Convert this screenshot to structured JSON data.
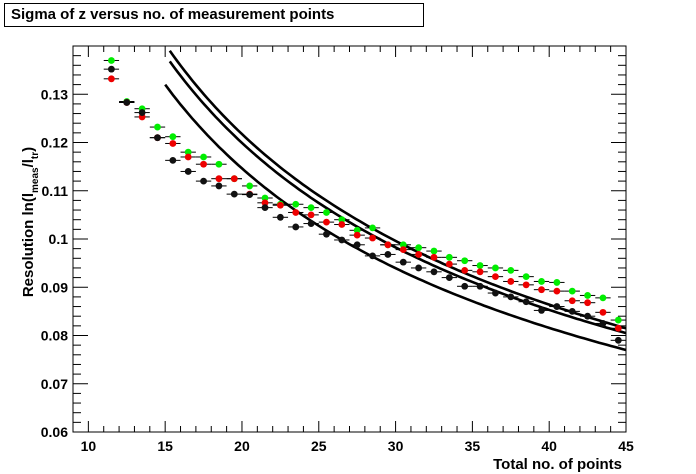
{
  "chart_data": {
    "type": "scatter",
    "title": "Sigma of z versus no. of measurement points",
    "xlabel": "Total no. of points",
    "ylabel_main": "Resolution ln(l",
    "ylabel_sub1": "meas",
    "ylabel_mid": "/l",
    "ylabel_sub2": "tr",
    "ylabel_end": ")",
    "xlim": [
      9,
      45
    ],
    "ylim": [
      0.06,
      0.14
    ],
    "xticks": [
      10,
      15,
      20,
      25,
      30,
      35,
      40,
      45
    ],
    "xtick_labels": [
      "10",
      "15",
      "20",
      "25",
      "30",
      "35",
      "40",
      "45"
    ],
    "yticks": [
      0.06,
      0.07,
      0.08,
      0.09,
      0.1,
      0.11,
      0.12,
      0.13
    ],
    "ytick_labels": [
      "0.06",
      "0.07",
      "0.08",
      "0.09",
      "0.1",
      "0.11",
      "0.12",
      "0.13"
    ],
    "x": [
      11.5,
      12.5,
      13.5,
      14.5,
      15.5,
      16.5,
      17.5,
      18.5,
      19.5,
      20.5,
      21.5,
      22.5,
      23.5,
      24.5,
      25.5,
      26.5,
      27.5,
      28.5,
      29.5,
      30.5,
      31.5,
      32.5,
      33.5,
      34.5,
      35.5,
      36.5,
      37.5,
      38.5,
      39.5,
      40.5,
      41.5,
      42.5,
      43.5,
      44.5
    ],
    "series": [
      {
        "color": "#00ee00",
        "values": [
          0.137,
          0.1285,
          0.127,
          0.1232,
          0.1212,
          0.118,
          0.117,
          0.1155,
          0.1125,
          0.111,
          0.1085,
          0.1072,
          0.1072,
          0.1065,
          0.1055,
          0.104,
          0.1018,
          0.1023,
          0.0988,
          0.0988,
          0.0982,
          0.0975,
          0.0962,
          0.0955,
          0.0945,
          0.094,
          0.0935,
          0.0922,
          0.0912,
          0.091,
          0.0892,
          0.0883,
          0.0878,
          0.0832
        ]
      },
      {
        "color": "#ee0000",
        "values": [
          0.1332,
          0.1283,
          0.1253,
          0.121,
          0.1198,
          0.117,
          0.1155,
          0.1125,
          0.1125,
          0.1093,
          0.1075,
          0.107,
          0.1055,
          0.105,
          0.1035,
          0.103,
          0.1008,
          0.1002,
          0.0988,
          0.0978,
          0.0968,
          0.0962,
          0.0948,
          0.0935,
          0.0932,
          0.0922,
          0.0912,
          0.0905,
          0.0895,
          0.0892,
          0.0872,
          0.0868,
          0.0848,
          0.0815
        ]
      },
      {
        "color": "#111111",
        "values": [
          0.1352,
          0.1283,
          0.1262,
          0.121,
          0.1163,
          0.114,
          0.112,
          0.111,
          0.1093,
          0.1092,
          0.1065,
          0.1045,
          0.1025,
          0.1032,
          0.101,
          0.0998,
          0.0988,
          0.0965,
          0.0968,
          0.0952,
          0.094,
          0.0932,
          0.092,
          0.0902,
          0.0902,
          0.0888,
          0.088,
          0.087,
          0.0852,
          0.086,
          0.085,
          0.084,
          0.0825,
          0.079
        ]
      }
    ],
    "curves": [
      {
        "x_start": 15.0,
        "x_end": 45.0,
        "y_at_start": 0.132,
        "y_at_end": 0.077
      },
      {
        "x_start": 15.3,
        "x_end": 45.0,
        "y_at_start": 0.1368,
        "y_at_end": 0.0805
      },
      {
        "x_start": 15.3,
        "x_end": 45.0,
        "y_at_start": 0.139,
        "y_at_end": 0.0815
      }
    ]
  }
}
